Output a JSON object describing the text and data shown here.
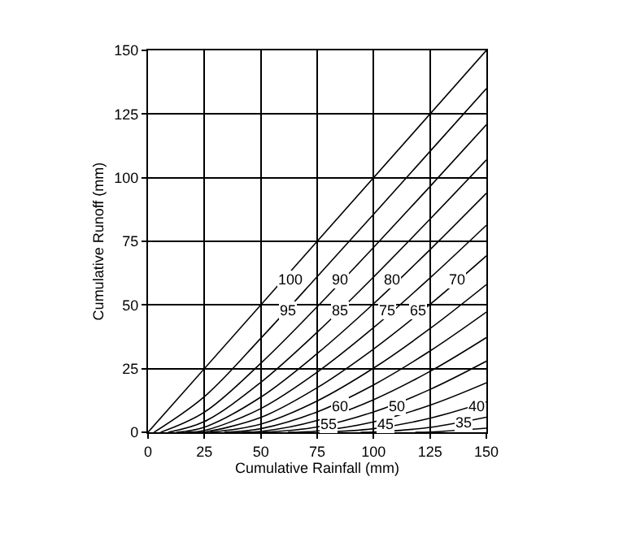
{
  "chart_data": {
    "type": "line",
    "xlabel": "Cumulative Rainfall (mm)",
    "ylabel": "Cumulative Runoff (mm)",
    "xlim": [
      0,
      150
    ],
    "ylim": [
      0,
      150
    ],
    "xticks": [
      0,
      25,
      50,
      75,
      100,
      125,
      150
    ],
    "yticks": [
      0,
      25,
      50,
      75,
      100,
      125,
      150
    ],
    "grid": true,
    "marker": "none",
    "line_style": "solid",
    "series": [
      {
        "color": "#000000",
        "x": [
          0,
          150
        ],
        "values": [
          0,
          150
        ]
      },
      {
        "color": "#000000",
        "x": [
          2.7,
          25,
          50,
          75,
          100,
          125,
          150
        ],
        "values": [
          0,
          14.0,
          36.9,
          61.1,
          85.6,
          110.3,
          135.0
        ]
      },
      {
        "color": "#000000",
        "x": [
          5.6,
          25,
          50,
          75,
          100,
          125,
          150
        ],
        "values": [
          0,
          7.9,
          27.1,
          49.3,
          72.6,
          96.5,
          120.8
        ]
      },
      {
        "color": "#000000",
        "x": [
          9.0,
          25,
          50,
          75,
          100,
          125,
          150
        ],
        "values": [
          0,
          4.2,
          19.6,
          39.3,
          61.0,
          83.7,
          107.0
        ]
      },
      {
        "color": "#000000",
        "x": [
          12.7,
          25,
          50,
          75,
          100,
          125,
          150
        ],
        "values": [
          0,
          2.0,
          13.8,
          30.9,
          50.5,
          71.7,
          93.9
        ]
      },
      {
        "color": "#000000",
        "x": [
          16.9,
          25,
          50,
          75,
          100,
          125,
          150
        ],
        "values": [
          0,
          0.7,
          9.3,
          23.6,
          41.1,
          60.6,
          81.3
        ]
      },
      {
        "color": "#000000",
        "x": [
          21.8,
          25,
          50,
          75,
          100,
          125,
          150
        ],
        "values": [
          0,
          0.1,
          5.8,
          17.5,
          32.7,
          50.2,
          69.3
        ]
      },
      {
        "color": "#000000",
        "x": [
          27.4,
          50,
          75,
          100,
          125,
          150
        ],
        "values": [
          0,
          3.2,
          12.3,
          25.2,
          40.7,
          58.0
        ]
      },
      {
        "color": "#000000",
        "x": [
          33.9,
          50,
          75,
          100,
          125,
          150
        ],
        "values": [
          0,
          1.4,
          8.0,
          18.6,
          31.9,
          47.2
        ]
      },
      {
        "color": "#000000",
        "x": [
          41.6,
          50,
          75,
          100,
          125,
          150
        ],
        "values": [
          0,
          0.3,
          4.6,
          12.8,
          23.9,
          37.2
        ]
      },
      {
        "color": "#000000",
        "x": [
          50.8,
          75,
          100,
          125,
          150
        ],
        "values": [
          0,
          2.1,
          8.0,
          16.8,
          27.9
        ]
      },
      {
        "color": "#000000",
        "x": [
          62.1,
          75,
          100,
          125,
          150
        ],
        "values": [
          0,
          0.5,
          4.1,
          10.6,
          19.4
        ]
      },
      {
        "color": "#000000",
        "x": [
          76.2,
          100,
          125,
          150
        ],
        "values": [
          0,
          1.4,
          5.5,
          12.0
        ]
      },
      {
        "color": "#000000",
        "x": [
          94.3,
          100,
          125,
          150
        ],
        "values": [
          0,
          0.1,
          1.9,
          5.9
        ]
      },
      {
        "color": "#000000",
        "x": [
          118.5,
          125,
          150
        ],
        "values": [
          0,
          0.1,
          1.6
        ]
      }
    ],
    "annotations": [
      {
        "text": "100",
        "x": 63,
        "y": 60
      },
      {
        "text": "95",
        "x": 62,
        "y": 48
      },
      {
        "text": "90",
        "x": 85,
        "y": 60
      },
      {
        "text": "85",
        "x": 85,
        "y": 48
      },
      {
        "text": "80",
        "x": 108,
        "y": 60
      },
      {
        "text": "75",
        "x": 106,
        "y": 48
      },
      {
        "text": "70",
        "x": 137,
        "y": 60
      },
      {
        "text": "65",
        "x": 120,
        "y": 48
      },
      {
        "text": "60",
        "x": 85,
        "y": 10
      },
      {
        "text": "55",
        "x": 80,
        "y": 3
      },
      {
        "text": "50",
        "x": 110,
        "y": 10
      },
      {
        "text": "45",
        "x": 105,
        "y": 3
      },
      {
        "text": "40",
        "x": 146,
        "y": 10
      },
      {
        "text": "35",
        "x": 140,
        "y": 4
      }
    ]
  }
}
